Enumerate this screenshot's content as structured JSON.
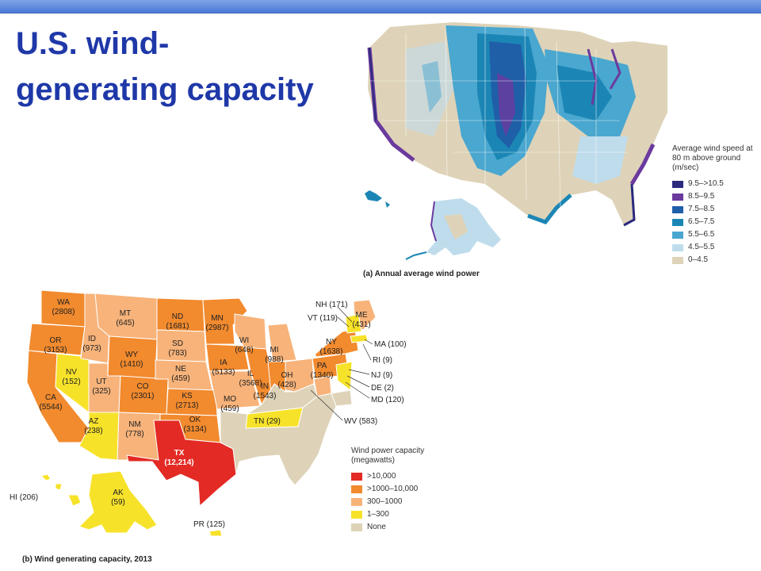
{
  "slide": {
    "title_line1": "U.S. wind-",
    "title_line2": "generating capacity"
  },
  "map_a": {
    "caption": "(a) Annual average wind power",
    "legend_title": "Average wind speed at 80 m above ground (m/sec)",
    "legend": [
      {
        "label": "9.5–>10.5",
        "color": "#2b2a7c"
      },
      {
        "label": "8.5–9.5",
        "color": "#6b3a9e"
      },
      {
        "label": "7.5–8.5",
        "color": "#1f5fa8"
      },
      {
        "label": "6.5–7.5",
        "color": "#1b86b5"
      },
      {
        "label": "5.5–6.5",
        "color": "#4aa7cf"
      },
      {
        "label": "4.5–5.5",
        "color": "#bfdcec"
      },
      {
        "label": "0–4.5",
        "color": "#ded3b8"
      }
    ]
  },
  "map_b": {
    "caption": "(b) Wind generating capacity, 2013",
    "legend_title": "Wind power capacity (megawatts)",
    "legend": [
      {
        "label": ">10,000",
        "color": "#e32a24"
      },
      {
        "label": ">1000–10,000",
        "color": "#f28a2e"
      },
      {
        "label": "300–1000",
        "color": "#f7b37a"
      },
      {
        "label": "1–300",
        "color": "#f7e22a"
      },
      {
        "label": "None",
        "color": "#ded3b8"
      }
    ],
    "states": {
      "WA": "WA",
      "WA_v": "(2808)",
      "OR": "OR",
      "OR_v": "(3153)",
      "CA": "CA",
      "CA_v": "(5544)",
      "NV": "NV",
      "NV_v": "(152)",
      "ID": "ID",
      "ID_v": "(973)",
      "MT": "MT",
      "MT_v": "(645)",
      "WY": "WY",
      "WY_v": "(1410)",
      "UT": "UT",
      "UT_v": "(325)",
      "CO": "CO",
      "CO_v": "(2301)",
      "AZ": "AZ",
      "AZ_v": "(238)",
      "NM": "NM",
      "NM_v": "(778)",
      "ND": "ND",
      "ND_v": "(1681)",
      "SD": "SD",
      "SD_v": "(783)",
      "NE": "NE",
      "NE_v": "(459)",
      "KS": "KS",
      "KS_v": "(2713)",
      "OK": "OK",
      "OK_v": "(3134)",
      "TX": "TX",
      "TX_v": "(12,214)",
      "MN": "MN",
      "MN_v": "(2987)",
      "IA": "IA",
      "IA_v": "(5133)",
      "MO": "MO",
      "MO_v": "(459)",
      "WI": "WI",
      "WI_v": "(648)",
      "IL": "IL",
      "IL_v": "(3568)",
      "MI": "MI",
      "MI_v": "(988)",
      "IN": "IN",
      "IN_v": "(1543)",
      "OH": "OH",
      "OH_v": "(428)",
      "PA": "PA",
      "PA_v": "(1340)",
      "NY": "NY",
      "NY_v": "(1638)",
      "ME": "ME",
      "ME_v": "(431)"
    },
    "callouts": {
      "NH": "NH (171)",
      "VT": "VT (119)",
      "MA": "MA (100)",
      "RI": "RI (9)",
      "NJ": "NJ (9)",
      "DE": "DE (2)",
      "MD": "MD (120)",
      "WV": "WV (583)",
      "TN": "TN (29)",
      "HI": "HI (206)",
      "AK": "AK",
      "AK_v": "(59)",
      "PR": "PR (125)"
    }
  }
}
